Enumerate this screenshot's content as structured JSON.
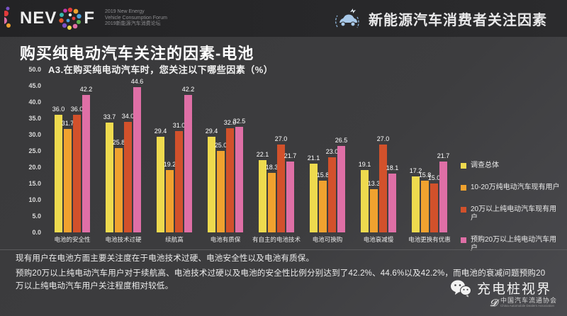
{
  "header": {
    "logo_nev": "NEV",
    "logo_f": "F",
    "forum_line1": "2019 New Energy",
    "forum_line2": "Vehicle Consumption Forum",
    "forum_line3": "2019新能源汽车消费论坛",
    "page_title": "新能源汽车消费者关注因素"
  },
  "main": {
    "title": "购买纯电动汽车关注的因素-电池",
    "subtitle": "A3.在购买纯电动汽车时，您关注以下哪些因素（%）"
  },
  "chart_data": {
    "type": "bar",
    "title": "A3.在购买纯电动汽车时，您关注以下哪些因素（%）",
    "categories": [
      "电池的安全性",
      "电池技术过硬",
      "续航高",
      "电池有质保",
      "有自主的电池技术",
      "电池可换购",
      "电池衰减慢",
      "电池更换有优惠"
    ],
    "series": [
      {
        "name": "调查总体",
        "color": "#eeda4e",
        "values": [
          36.0,
          33.7,
          29.4,
          29.4,
          22.1,
          21.1,
          19.1,
          17.2
        ]
      },
      {
        "name": "10-20万纯电动汽车现有用户",
        "color": "#f0a22f",
        "values": [
          31.7,
          25.8,
          19.2,
          25.0,
          18.3,
          15.8,
          13.3,
          15.8
        ]
      },
      {
        "name": "20万以上纯电动汽车现有用户",
        "color": "#d2512b",
        "values": [
          36.0,
          34.0,
          31.0,
          32.0,
          27.0,
          23.0,
          27.0,
          15.0
        ]
      },
      {
        "name": "预购20万以上纯电动汽车用户",
        "color": "#df6fa6",
        "values": [
          42.2,
          44.6,
          42.2,
          32.5,
          21.7,
          26.5,
          18.1,
          21.7
        ]
      }
    ],
    "ylim": [
      0,
      50
    ],
    "ytick_step": 5,
    "grid": false,
    "legend_position": "right"
  },
  "notes": {
    "line1": "现有用户在电池方面主要关注度在于电池技术过硬、电池安全性以及电池有质保。",
    "line2": "预购20万以上纯电动汽车用户对于续航高、电池技术过硬以及电池的安全性比例分别达到了42.2%、44.6%以及42.2%，而电池的衰减问题预购20万以上纯电动汽车用户关注程度相对较低。"
  },
  "footer": {
    "wechat_name": "充电桩视界",
    "association_cn": "中国汽车流通协会",
    "association_en": "China Automobile Dealers Association"
  }
}
